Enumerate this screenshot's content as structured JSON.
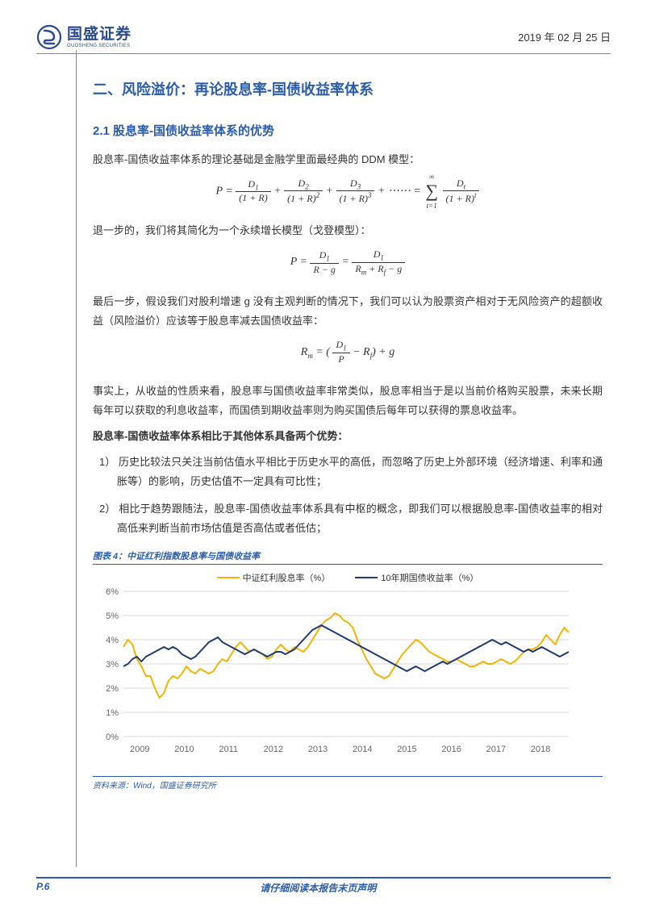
{
  "header": {
    "logo_cn": "国盛证券",
    "logo_en": "GUOSHENG SECURITIES",
    "date": "2019 年 02 月 25 日"
  },
  "section": {
    "h1": "二、风险溢价：再论股息率-国债收益率体系",
    "h2": "2.1  股息率-国债收益率体系的优势",
    "p1": "股息率-国债收益率体系的理论基础是金融学里面最经典的 DDM 模型：",
    "p2": "退一步的，我们将其简化为一个永续增长模型（戈登模型）：",
    "p3": "最后一步，假设我们对股利增速 g 没有主观判断的情况下，我们可以认为股票资产相对于无风险资产的超额收益（风险溢价）应该等于股息率减去国债收益率：",
    "p4": "事实上，从收益的性质来看，股息率与国债收益率非常类似，股息率相当于是以当前价格购买股票，未来长期每年可以获取的利息收益率，而国债到期收益率则为购买国债后每年可以获得的票息收益率。",
    "p5_bold": "股息率-国债收益率体系相比于其他体系具备两个优势：",
    "li1": "1） 历史比较法只关注当前估值水平相比于历史水平的高低，而忽略了历史上外部环境（经济增速、利率和通胀等）的影响，历史估值不一定具有可比性；",
    "li2": "2） 相比于趋势跟随法，股息率-国债收益率体系具有中枢的概念，即我们可以根据股息率-国债收益率的相对高低来判断当前市场估值是否高估或者低估；"
  },
  "chart": {
    "title": "图表 4：中证红利指数股息率与国债收益率",
    "source": "资料来源：Wind，国盛证券研究所",
    "legend1": "中证红利股息率（%）",
    "legend2": "10年期国债收益率（%）",
    "color1": "#f0b400",
    "color2": "#1f3a6e",
    "ylim": [
      0,
      6
    ],
    "ytick_step": 1,
    "xlabels": [
      "2009",
      "2010",
      "2011",
      "2012",
      "2013",
      "2014",
      "2015",
      "2016",
      "2017",
      "2018"
    ],
    "series1_color": "#f0b400",
    "series2_color": "#1f3a6e",
    "background_color": "#ffffff",
    "grid_color": "#d9d9d9",
    "series1": [
      3.7,
      4.0,
      3.8,
      3.2,
      2.9,
      2.5,
      2.5,
      2.0,
      1.6,
      1.8,
      2.3,
      2.5,
      2.4,
      2.6,
      2.9,
      2.7,
      2.6,
      2.8,
      2.7,
      2.6,
      2.7,
      3.0,
      3.2,
      3.1,
      3.4,
      3.7,
      3.9,
      3.7,
      3.5,
      3.6,
      3.5,
      3.4,
      3.2,
      3.3,
      3.6,
      3.8,
      3.6,
      3.5,
      3.7,
      3.6,
      3.5,
      3.7,
      4.0,
      4.3,
      4.6,
      4.8,
      4.9,
      5.1,
      5.0,
      4.8,
      4.7,
      4.5,
      4.0,
      3.6,
      3.2,
      2.9,
      2.6,
      2.5,
      2.4,
      2.5,
      2.8,
      3.1,
      3.4,
      3.6,
      3.8,
      4.0,
      3.9,
      3.7,
      3.5,
      3.4,
      3.3,
      3.2,
      3.1,
      3.1,
      3.2,
      3.1,
      3.0,
      2.9,
      2.9,
      3.0,
      3.1,
      3.0,
      3.0,
      3.1,
      3.2,
      3.1,
      3.0,
      3.1,
      3.3,
      3.5,
      3.6,
      3.6,
      3.7,
      3.9,
      4.2,
      4.0,
      3.8,
      4.2,
      4.5,
      4.3
    ],
    "series2": [
      2.9,
      3.0,
      3.2,
      3.3,
      3.1,
      3.3,
      3.4,
      3.5,
      3.6,
      3.7,
      3.6,
      3.7,
      3.6,
      3.4,
      3.3,
      3.2,
      3.3,
      3.5,
      3.7,
      3.9,
      4.0,
      4.1,
      3.9,
      3.8,
      3.7,
      3.6,
      3.5,
      3.4,
      3.5,
      3.6,
      3.5,
      3.4,
      3.3,
      3.4,
      3.5,
      3.5,
      3.4,
      3.5,
      3.6,
      3.8,
      4.0,
      4.2,
      4.4,
      4.5,
      4.6,
      4.5,
      4.4,
      4.3,
      4.2,
      4.1,
      4.0,
      3.9,
      3.8,
      3.7,
      3.6,
      3.5,
      3.4,
      3.3,
      3.2,
      3.1,
      3.0,
      2.9,
      2.8,
      2.7,
      2.8,
      2.9,
      2.8,
      2.7,
      2.8,
      2.9,
      3.0,
      3.1,
      3.0,
      3.1,
      3.2,
      3.3,
      3.4,
      3.5,
      3.6,
      3.7,
      3.8,
      3.9,
      4.0,
      3.9,
      3.8,
      3.9,
      3.8,
      3.7,
      3.6,
      3.5,
      3.6,
      3.5,
      3.6,
      3.7,
      3.6,
      3.5,
      3.4,
      3.3,
      3.4,
      3.5
    ]
  },
  "footer": {
    "page": "P.6",
    "notice": "请仔细阅读本报告末页声明"
  }
}
